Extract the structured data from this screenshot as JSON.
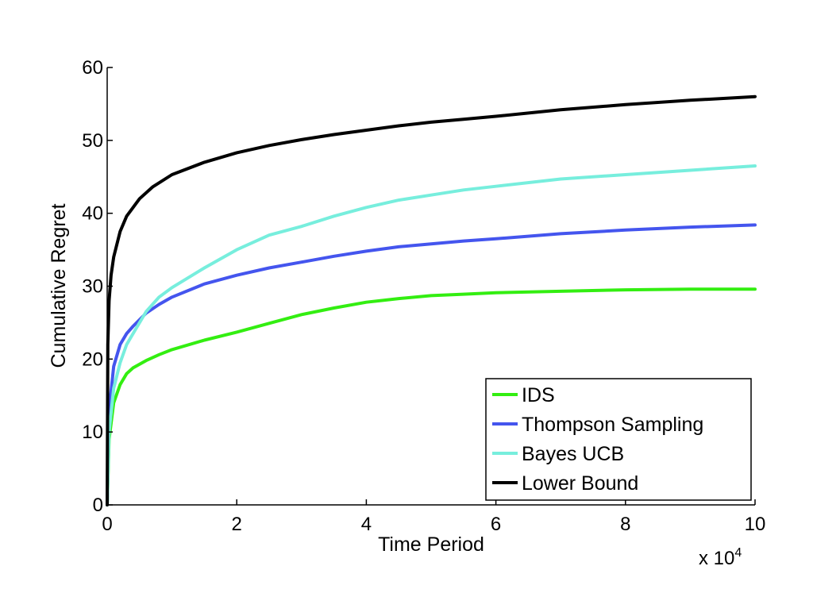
{
  "chart_data": {
    "type": "line",
    "xlabel": "Time Period",
    "ylabel": "Cumulative Regret",
    "x_multiplier_label": "x 10",
    "x_multiplier_exponent": "4",
    "xlim": [
      0,
      100000
    ],
    "ylim": [
      0,
      60
    ],
    "xticks": [
      0,
      20000,
      40000,
      60000,
      80000,
      100000
    ],
    "xtick_labels": [
      "0",
      "2",
      "4",
      "6",
      "8",
      "10"
    ],
    "yticks": [
      0,
      10,
      20,
      30,
      40,
      50,
      60
    ],
    "ytick_labels": [
      "0",
      "10",
      "20",
      "30",
      "40",
      "50",
      "60"
    ],
    "grid": false,
    "legend_position": "bottom-right",
    "series": [
      {
        "name": "IDS",
        "color": "#33ee11",
        "x": [
          0,
          300,
          1000,
          2000,
          3000,
          4000,
          6000,
          8000,
          10000,
          15000,
          20000,
          25000,
          30000,
          35000,
          40000,
          45000,
          50000,
          55000,
          60000,
          70000,
          80000,
          90000,
          100000
        ],
        "y": [
          0,
          9,
          14,
          16.5,
          18,
          18.8,
          19.8,
          20.6,
          21.3,
          22.6,
          23.7,
          24.9,
          26.1,
          27.0,
          27.8,
          28.3,
          28.7,
          28.9,
          29.1,
          29.3,
          29.5,
          29.6,
          29.6
        ]
      },
      {
        "name": "Thompson Sampling",
        "color": "#4455ee",
        "x": [
          0,
          300,
          1000,
          2000,
          3000,
          4000,
          6000,
          8000,
          10000,
          15000,
          20000,
          25000,
          30000,
          35000,
          40000,
          45000,
          50000,
          55000,
          60000,
          70000,
          80000,
          90000,
          100000
        ],
        "y": [
          0,
          13,
          19,
          22,
          23.5,
          24.5,
          26.3,
          27.5,
          28.5,
          30.3,
          31.5,
          32.5,
          33.3,
          34.1,
          34.8,
          35.4,
          35.8,
          36.2,
          36.5,
          37.2,
          37.7,
          38.1,
          38.4
        ]
      },
      {
        "name": "Bayes UCB",
        "color": "#77eedd",
        "x": [
          0,
          300,
          1000,
          2000,
          3000,
          4000,
          6000,
          8000,
          10000,
          15000,
          20000,
          25000,
          30000,
          35000,
          40000,
          45000,
          50000,
          55000,
          60000,
          70000,
          80000,
          90000,
          100000
        ],
        "y": [
          0,
          10,
          16,
          19.5,
          22,
          23.5,
          26.5,
          28.5,
          29.8,
          32.5,
          35.0,
          37.0,
          38.2,
          39.6,
          40.8,
          41.8,
          42.5,
          43.2,
          43.7,
          44.7,
          45.3,
          45.9,
          46.5
        ]
      },
      {
        "name": "Lower Bound",
        "color": "#000000",
        "x": [
          0,
          100,
          300,
          600,
          1000,
          2000,
          3000,
          5000,
          7000,
          10000,
          15000,
          20000,
          25000,
          30000,
          35000,
          40000,
          45000,
          50000,
          55000,
          60000,
          70000,
          80000,
          90000,
          100000
        ],
        "y": [
          0,
          22,
          28,
          31.5,
          34,
          37.5,
          39.6,
          42.0,
          43.6,
          45.3,
          47.0,
          48.3,
          49.3,
          50.1,
          50.8,
          51.4,
          52.0,
          52.5,
          52.9,
          53.3,
          54.2,
          54.9,
          55.5,
          56.0
        ]
      }
    ]
  }
}
